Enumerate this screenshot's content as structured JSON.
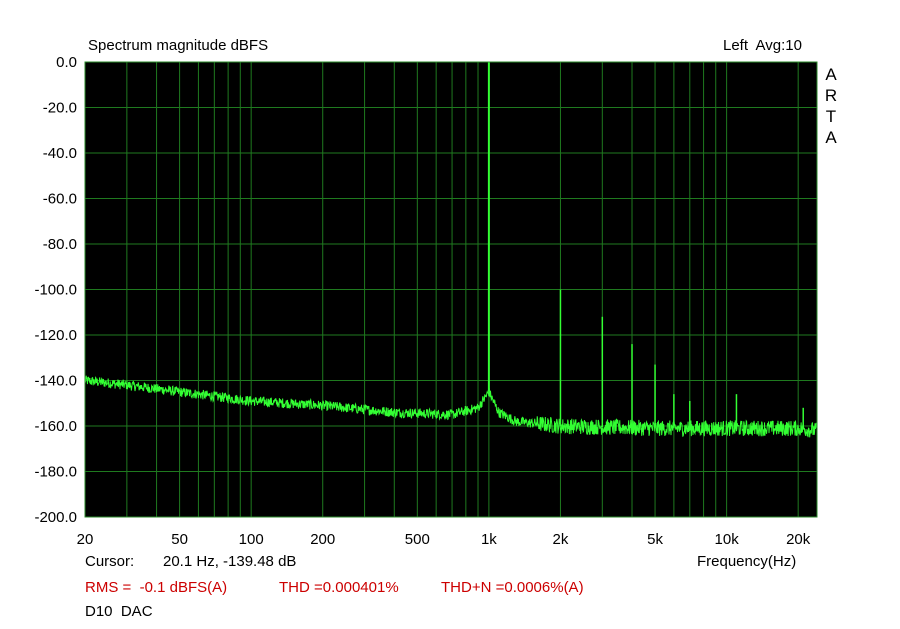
{
  "header": {
    "title": "Spectrum magnitude dBFS",
    "channel_info": "Left  Avg:10"
  },
  "side_label": [
    "A",
    "R",
    "T",
    "A"
  ],
  "footer": {
    "cursor_label": "Cursor:",
    "cursor_value": "20.1 Hz, -139.48 dB",
    "rms": "RMS =  -0.1 dBFS(A)",
    "thd": "THD =0.000401%",
    "thdn": "THD+N =0.0006%(A)",
    "device": "D10  DAC"
  },
  "colors": {
    "plot_bg": "#000000",
    "grid": "#1f7a1f",
    "trace": "#33ff33",
    "stats_text": "#cc0000"
  },
  "chart_data": {
    "type": "line",
    "title": "Spectrum magnitude dBFS",
    "xlabel": "Frequency(Hz)",
    "ylabel": "",
    "xscale": "log",
    "xlim": [
      20,
      24000
    ],
    "ylim": [
      -200,
      0
    ],
    "grid": true,
    "x_ticks": [
      {
        "value": 20,
        "label": "20"
      },
      {
        "value": 50,
        "label": "50"
      },
      {
        "value": 100,
        "label": "100"
      },
      {
        "value": 200,
        "label": "200"
      },
      {
        "value": 500,
        "label": "500"
      },
      {
        "value": 1000,
        "label": "1k"
      },
      {
        "value": 2000,
        "label": "2k"
      },
      {
        "value": 5000,
        "label": "5k"
      },
      {
        "value": 10000,
        "label": "10k"
      },
      {
        "value": 20000,
        "label": "20k"
      }
    ],
    "y_ticks": [
      {
        "value": 0,
        "label": "0.0"
      },
      {
        "value": -20,
        "label": "-20.0"
      },
      {
        "value": -40,
        "label": "-40.0"
      },
      {
        "value": -60,
        "label": "-60.0"
      },
      {
        "value": -80,
        "label": "-80.0"
      },
      {
        "value": -100,
        "label": "-100.0"
      },
      {
        "value": -120,
        "label": "-120.0"
      },
      {
        "value": -140,
        "label": "-140.0"
      },
      {
        "value": -160,
        "label": "-160.0"
      },
      {
        "value": -180,
        "label": "-180.0"
      },
      {
        "value": -200,
        "label": "-200.0"
      }
    ],
    "series": [
      {
        "noise_floor": {
          "x": [
            20,
            30,
            50,
            100,
            200,
            400,
            700,
            900,
            1000,
            1100,
            1300,
            2000,
            5000,
            10000,
            20000,
            24000
          ],
          "y": [
            -140,
            -142,
            -145,
            -149,
            -151,
            -154,
            -155,
            -152,
            -145,
            -154,
            -158,
            -160,
            -161,
            -161,
            -161,
            -162
          ]
        },
        "peaks": [
          {
            "freq": 1000,
            "level": 0
          },
          {
            "freq": 2000,
            "level": -100
          },
          {
            "freq": 3000,
            "level": -112
          },
          {
            "freq": 4000,
            "level": -124
          },
          {
            "freq": 5000,
            "level": -133
          },
          {
            "freq": 6000,
            "level": -146
          },
          {
            "freq": 7000,
            "level": -149
          },
          {
            "freq": 11000,
            "level": -146
          },
          {
            "freq": 21000,
            "level": -152
          }
        ]
      }
    ]
  }
}
